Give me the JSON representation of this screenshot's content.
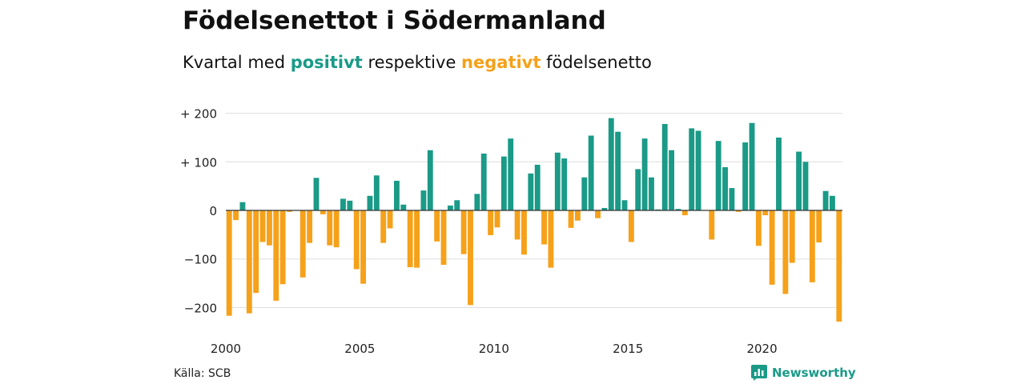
{
  "title": "Födelsenettot i Södermanland",
  "subtitle": {
    "prefix": "Kvartal med ",
    "positive_word": "positivt",
    "middle": " respektive ",
    "negative_word": "negativt",
    "suffix": " födelsenetto"
  },
  "colors": {
    "positive": "#1a9a87",
    "negative": "#f5a11a",
    "grid": "#dddddd",
    "axis": "#333333",
    "brand": "#1a9a87"
  },
  "source": "Källa: SCB",
  "brand": {
    "name": "Newsworthy",
    "icon": "newsworthy-logo-icon"
  },
  "chart_data": {
    "type": "bar",
    "title": "Födelsenettot i Södermanland",
    "subtitle": "Kvartal med positivt respektive negativt födelsenetto",
    "xlabel": "",
    "ylabel": "",
    "ylim": [
      -230,
      200
    ],
    "yticks": [
      200,
      100,
      0,
      -100,
      -200
    ],
    "ytick_labels": [
      "+ 200",
      "+ 100",
      "0",
      "−100",
      "−200"
    ],
    "xticks": [
      2000,
      2005,
      2010,
      2015,
      2020
    ],
    "x_start": 2000,
    "quarters_per_year": 4,
    "grid": true,
    "values": [
      -217,
      -20,
      17,
      -212,
      -170,
      -65,
      -72,
      -186,
      -152,
      -3,
      0,
      -138,
      -67,
      67,
      -8,
      -72,
      -76,
      24,
      20,
      -121,
      -151,
      30,
      72,
      -67,
      -37,
      61,
      12,
      -117,
      -118,
      41,
      124,
      -64,
      -112,
      10,
      21,
      -90,
      -195,
      34,
      117,
      -51,
      -35,
      111,
      148,
      -60,
      -91,
      76,
      94,
      -70,
      -118,
      119,
      107,
      -36,
      -21,
      68,
      154,
      -16,
      5,
      190,
      162,
      21,
      -65,
      85,
      148,
      68,
      2,
      178,
      124,
      3,
      -10,
      169,
      164,
      0,
      -60,
      143,
      89,
      46,
      -3,
      140,
      180,
      -73,
      -10,
      -153,
      150,
      -172,
      -108,
      121,
      100,
      -148,
      -66,
      40,
      30,
      -229
    ]
  }
}
